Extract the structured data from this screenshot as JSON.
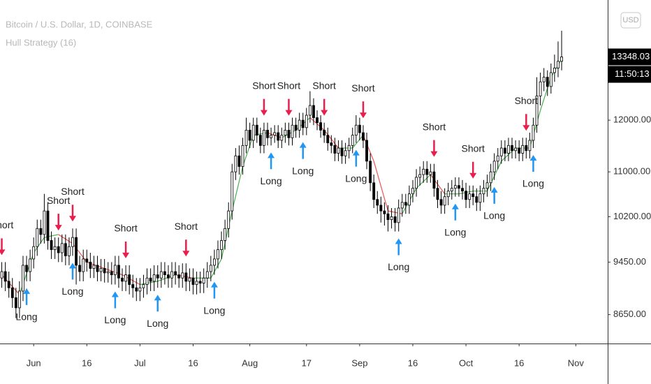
{
  "chart_data": {
    "type": "candlestick",
    "title": "Bitcoin / U.S. Dollar, 1D, COINBASE",
    "subtitle": "Hull Strategy (16)",
    "currency": "USD",
    "countdown": "11:50:13",
    "log_scale": true,
    "up_color": "#ffffff",
    "down_color": "#000000",
    "xlim": [
      -0.5,
      171
    ],
    "ylim": [
      8240,
      14690
    ],
    "yticks": [
      {
        "value": 8650,
        "label": "8650.00"
      },
      {
        "value": 9450,
        "label": "9450.00"
      },
      {
        "value": 10200,
        "label": "10200.00"
      },
      {
        "value": 11000,
        "label": "11000.00"
      },
      {
        "value": 12000,
        "label": "12000.00"
      }
    ],
    "xticks": [
      {
        "value": 9,
        "label": "Jun"
      },
      {
        "value": 24,
        "label": "16"
      },
      {
        "value": 39,
        "label": "Jul"
      },
      {
        "value": 54,
        "label": "16"
      },
      {
        "value": 70,
        "label": "Aug"
      },
      {
        "value": 86,
        "label": "17"
      },
      {
        "value": 101,
        "label": "Sep"
      },
      {
        "value": 116,
        "label": "16"
      },
      {
        "value": 131,
        "label": "Oct"
      },
      {
        "value": 146,
        "label": "16"
      },
      {
        "value": 162,
        "label": "Nov"
      }
    ],
    "open": [
      9200,
      9300,
      9150,
      9050,
      8900,
      8750,
      9000,
      9400,
      9300,
      9500,
      9700,
      10000,
      9900,
      10300,
      9800,
      9650,
      9700,
      9600,
      9750,
      9550,
      9700,
      9850,
      9400,
      9300,
      9500,
      9450,
      9350,
      9400,
      9300,
      9350,
      9280,
      9300,
      9250,
      9400,
      9200,
      9150,
      9250,
      9100,
      9050,
      9000,
      9050,
      9100,
      9200,
      9150,
      9250,
      9200,
      9300,
      9250,
      9200,
      9300,
      9250,
      9200,
      9280,
      9150,
      9200,
      9100,
      9150,
      9120,
      9200,
      9300,
      9400,
      9500,
      9650,
      9800,
      10000,
      10300,
      11000,
      11300,
      11100,
      11500,
      11800,
      11600,
      11900,
      11700,
      11500,
      11800,
      11650,
      11700,
      11750,
      11600,
      11700,
      11800,
      11650,
      11900,
      11800,
      12000,
      11850,
      12100,
      12300,
      12050,
      11950,
      11800,
      11700,
      11550,
      11500,
      11350,
      11450,
      11300,
      11400,
      11500,
      11700,
      11900,
      11750,
      11600,
      11200,
      10800,
      10500,
      10400,
      10300,
      10250,
      10150,
      10200,
      10100,
      10350,
      10450,
      10400,
      10600,
      10700,
      10900,
      10950,
      11050,
      10950,
      11000,
      10700,
      10500,
      10400,
      10550,
      10650,
      10700,
      10750,
      10700,
      10650,
      10500,
      10600,
      10550,
      10450,
      10600,
      10700,
      10800,
      11000,
      11200,
      11300,
      11450,
      11350,
      11500,
      11400,
      11450,
      11350,
      11500,
      11400,
      11600,
      11900,
      12500,
      12800,
      12900,
      12700,
      13000,
      13100,
      13250
    ],
    "high": [
      9450,
      9450,
      9300,
      9200,
      9050,
      9150,
      9550,
      9550,
      9650,
      9850,
      10150,
      10150,
      10600,
      10450,
      9950,
      9850,
      9850,
      9900,
      9900,
      9850,
      10000,
      10000,
      9550,
      9650,
      9650,
      9600,
      9550,
      9550,
      9500,
      9500,
      9450,
      9450,
      9550,
      9550,
      9350,
      9400,
      9400,
      9250,
      9200,
      9200,
      9250,
      9350,
      9350,
      9400,
      9400,
      9450,
      9450,
      9400,
      9450,
      9450,
      9400,
      9430,
      9430,
      9350,
      9350,
      9300,
      9300,
      9350,
      9450,
      9550,
      9650,
      9800,
      9950,
      10150,
      10450,
      11150,
      11450,
      11500,
      11650,
      12050,
      11950,
      12050,
      12050,
      11850,
      11950,
      11950,
      11850,
      11900,
      11900,
      11850,
      11950,
      11950,
      12050,
      12050,
      12150,
      12150,
      12250,
      12600,
      12450,
      12200,
      12100,
      11950,
      11850,
      11700,
      11650,
      11600,
      11600,
      11550,
      11650,
      11850,
      12100,
      12050,
      11900,
      11750,
      11350,
      10950,
      10650,
      10550,
      10450,
      10400,
      10350,
      10350,
      10500,
      10600,
      10600,
      10750,
      10850,
      11050,
      11100,
      11200,
      11200,
      11150,
      11150,
      10850,
      10650,
      10700,
      10800,
      10850,
      10900,
      10900,
      10850,
      10800,
      10750,
      10750,
      10700,
      10750,
      10850,
      10950,
      11150,
      11350,
      11450,
      11600,
      11600,
      11650,
      11650,
      11600,
      11600,
      11650,
      11650,
      11750,
      12050,
      12900,
      13000,
      13100,
      13050,
      13200,
      13400,
      13700,
      13950
    ],
    "low": [
      9050,
      9000,
      8900,
      8750,
      8600,
      8600,
      8850,
      9150,
      9150,
      9350,
      9550,
      9750,
      9750,
      9650,
      9500,
      9500,
      9450,
      9450,
      9400,
      9400,
      9550,
      9100,
      9150,
      9150,
      9300,
      9200,
      9200,
      9150,
      9150,
      9130,
      9130,
      9100,
      9100,
      9050,
      9000,
      9000,
      8950,
      8900,
      8850,
      8850,
      8900,
      8950,
      9000,
      9000,
      9050,
      9050,
      9100,
      9050,
      9050,
      9100,
      9050,
      9050,
      9000,
      9000,
      8950,
      8950,
      8970,
      8970,
      9050,
      9150,
      9250,
      9350,
      9500,
      9650,
      9850,
      10150,
      10850,
      10950,
      10950,
      11350,
      11450,
      11450,
      11550,
      11350,
      11350,
      11500,
      11500,
      11550,
      11450,
      11450,
      11550,
      11500,
      11500,
      11650,
      11650,
      11700,
      11700,
      11950,
      11900,
      11800,
      11650,
      11550,
      11400,
      11350,
      11200,
      11200,
      11150,
      11150,
      11250,
      11350,
      11550,
      11600,
      11450,
      11050,
      10650,
      10350,
      10250,
      10100,
      10050,
      9950,
      10000,
      9950,
      9950,
      10200,
      10250,
      10250,
      10450,
      10550,
      10750,
      10800,
      10800,
      10800,
      10550,
      10350,
      10250,
      10250,
      10400,
      10500,
      10550,
      10550,
      10500,
      10350,
      10350,
      10400,
      10300,
      10300,
      10450,
      10550,
      10650,
      10850,
      11050,
      11150,
      11200,
      11200,
      11250,
      11250,
      11200,
      11200,
      11250,
      11250,
      11450,
      11750,
      12300,
      12600,
      12500,
      12550,
      12800,
      12900,
      13050
    ],
    "close": [
      9300,
      9150,
      9050,
      8900,
      8750,
      9000,
      9400,
      9300,
      9500,
      9700,
      10000,
      9900,
      10300,
      9800,
      9650,
      9700,
      9600,
      9750,
      9550,
      9700,
      9850,
      9400,
      9300,
      9500,
      9450,
      9350,
      9400,
      9300,
      9350,
      9280,
      9300,
      9250,
      9400,
      9200,
      9150,
      9250,
      9100,
      9050,
      9000,
      9050,
      9100,
      9200,
      9150,
      9250,
      9200,
      9300,
      9250,
      9200,
      9300,
      9250,
      9200,
      9280,
      9150,
      9200,
      9100,
      9150,
      9120,
      9200,
      9300,
      9400,
      9500,
      9650,
      9800,
      10000,
      10300,
      11000,
      11300,
      11100,
      11500,
      11800,
      11600,
      11900,
      11700,
      11500,
      11800,
      11650,
      11700,
      11750,
      11600,
      11700,
      11800,
      11650,
      11900,
      11800,
      12000,
      11850,
      12100,
      12300,
      12050,
      11950,
      11800,
      11700,
      11550,
      11500,
      11350,
      11450,
      11300,
      11400,
      11500,
      11700,
      11900,
      11750,
      11600,
      11200,
      10800,
      10500,
      10400,
      10300,
      10250,
      10150,
      10200,
      10100,
      10350,
      10450,
      10400,
      10600,
      10700,
      10900,
      10950,
      11050,
      10950,
      11000,
      10700,
      10500,
      10400,
      10550,
      10650,
      10700,
      10750,
      10700,
      10650,
      10500,
      10600,
      10550,
      10450,
      10600,
      10700,
      10800,
      11000,
      11200,
      11300,
      11450,
      11350,
      11500,
      11400,
      11450,
      11350,
      11500,
      11400,
      11600,
      11900,
      12500,
      12800,
      12900,
      12700,
      13000,
      13100,
      13250,
      13348.03
    ],
    "hull": {
      "rising_color": "#4caf50",
      "falling_color": "#ef5350",
      "x": [
        0,
        5,
        9,
        12,
        16,
        20,
        24,
        29,
        34,
        39,
        44,
        49,
        54,
        59,
        62,
        65,
        68,
        71,
        75,
        79,
        83,
        87,
        91,
        95,
        99,
        102,
        105,
        109,
        113,
        117,
        121,
        125,
        129,
        133,
        137,
        141,
        145,
        149,
        152,
        155,
        158
      ],
      "values": [
        9250,
        8950,
        9600,
        9850,
        9900,
        9750,
        9450,
        9350,
        9250,
        9100,
        9150,
        9250,
        9200,
        9200,
        9500,
        10300,
        11100,
        11700,
        11750,
        11650,
        11800,
        12050,
        11800,
        11450,
        11450,
        11700,
        11200,
        10300,
        10250,
        10700,
        10950,
        10600,
        10600,
        10650,
        10650,
        11200,
        11450,
        11450,
        12200,
        12900,
        13300
      ]
    },
    "short_color": "#e91e4c",
    "long_color": "#2196f3",
    "signals": [
      {
        "label": "Short",
        "x": 0
      },
      {
        "label": "Short",
        "x": 16
      },
      {
        "label": "Short",
        "x": 20
      },
      {
        "label": "Short",
        "x": 35
      },
      {
        "label": "Short",
        "x": 52
      },
      {
        "label": "Short",
        "x": 74
      },
      {
        "label": "Short",
        "x": 81
      },
      {
        "label": "Short",
        "x": 91
      },
      {
        "label": "Short",
        "x": 102
      },
      {
        "label": "Short",
        "x": 122
      },
      {
        "label": "Short",
        "x": 133
      },
      {
        "label": "Short",
        "x": 148
      },
      {
        "label": "Long",
        "x": 7
      },
      {
        "label": "Long",
        "x": 20
      },
      {
        "label": "Long",
        "x": 32
      },
      {
        "label": "Long",
        "x": 44
      },
      {
        "label": "Long",
        "x": 60
      },
      {
        "label": "Long",
        "x": 76
      },
      {
        "label": "Long",
        "x": 85
      },
      {
        "label": "Long",
        "x": 100
      },
      {
        "label": "Long",
        "x": 112
      },
      {
        "label": "Long",
        "x": 128
      },
      {
        "label": "Long",
        "x": 139
      },
      {
        "label": "Long",
        "x": 150
      }
    ]
  }
}
